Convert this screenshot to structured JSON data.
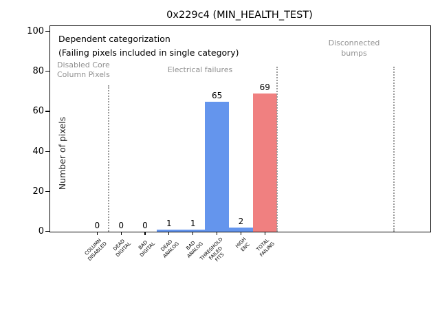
{
  "figure": {
    "background": "#ffffff"
  },
  "chart_data": {
    "type": "bar",
    "title": "0x229c4 (MIN_HEALTH_TEST)",
    "xlabel": "",
    "ylabel": "Number of pixels",
    "ylim": [
      0,
      102.7
    ],
    "yticks": [
      0,
      20,
      40,
      60,
      80,
      100
    ],
    "grid": false,
    "legend": null,
    "categories": [
      "COLUMN\nDISABLED",
      "DEAD\nDIGITAL",
      "BAD\nDIGITAL",
      "DEAD\nANALOG",
      "BAD\nANALOG",
      "THRESHOLD\nFAILED\nFITS",
      "HIGH\nENC",
      "TOTAL\nFAILING"
    ],
    "values": [
      0,
      0,
      0,
      1,
      1,
      65,
      2,
      69
    ],
    "bar_colors": [
      "#6495ED",
      "#6495ED",
      "#6495ED",
      "#6495ED",
      "#6495ED",
      "#6495ED",
      "#6495ED",
      "#F08080"
    ],
    "value_label_color": "#000000",
    "axis_color": "#000000",
    "separator_color": "#999999",
    "separators": [
      {
        "x_frac": 0.154,
        "top_frac": 0.288
      },
      {
        "x_frac": 0.597,
        "top_frac": 0.197
      },
      {
        "x_frac": 0.904,
        "top_frac": 0.197
      }
    ],
    "annotations": [
      {
        "id": "dependent-note",
        "lines": [
          "Dependent categorization",
          "(Failing pixels included in single category)"
        ],
        "color": "#000000"
      },
      {
        "id": "region-disabled-core-column",
        "lines": [
          "Disabled Core",
          "Column Pixels"
        ],
        "color": "#8f8f8f"
      },
      {
        "id": "region-electrical-failures",
        "lines": [
          "Electrical failures"
        ],
        "color": "#8f8f8f"
      },
      {
        "id": "region-disconnected-bumps",
        "lines": [
          "Disconnected",
          "bumps"
        ],
        "color": "#8f8f8f"
      }
    ]
  }
}
